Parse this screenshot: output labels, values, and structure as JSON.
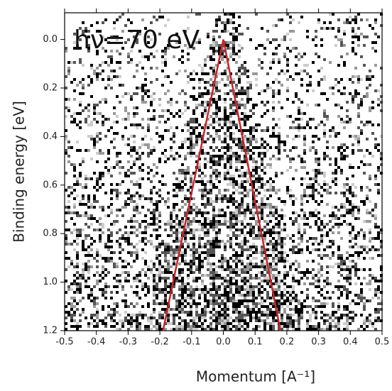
{
  "chart_data": {
    "type": "line",
    "annotation": "hν=70 eV",
    "x_label": "Momentum [A⁻¹]",
    "y_label": "Binding energy [eV]",
    "xlim": [
      -0.5,
      0.5
    ],
    "xticks": [
      -0.5,
      -0.4,
      -0.3,
      -0.2,
      -0.1,
      {
        "value": 0,
        "label": "0.0"
      },
      0.1,
      0.2,
      0.3,
      0.4,
      0.5
    ],
    "ylim": [
      -0.11,
      1.2
    ],
    "y_inverted": true,
    "yticks": [
      {
        "value": 0,
        "label": "0.0"
      },
      0.2,
      0.4,
      0.6,
      0.8,
      {
        "value": 1,
        "label": "1.0"
      },
      1.2
    ],
    "series": [
      {
        "color": "#c8242b",
        "x": [
          0,
          -0.19
        ],
        "values": [
          0,
          1.2
        ]
      },
      {
        "color": "#c8242b",
        "x": [
          0,
          0.18
        ],
        "values": [
          0,
          1.2
        ]
      }
    ]
  }
}
